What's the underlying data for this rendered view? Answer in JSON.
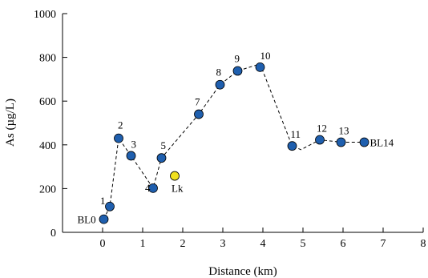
{
  "chart_data": {
    "type": "scatter",
    "title": "",
    "xlabel": "Distance (km)",
    "ylabel": "As (µg/L)",
    "xlim": [
      -1,
      8
    ],
    "ylim": [
      0,
      1000
    ],
    "xticks": [
      0,
      1,
      2,
      3,
      4,
      5,
      6,
      7,
      8
    ],
    "yticks": [
      0,
      200,
      400,
      600,
      800,
      1000
    ],
    "grid": false,
    "legend": "none",
    "series": [
      {
        "color": "#1f5fae",
        "points": [
          {
            "label": "BL0",
            "x": 0.03,
            "y": 60
          },
          {
            "label": "1",
            "x": 0.18,
            "y": 118
          },
          {
            "label": "2",
            "x": 0.4,
            "y": 430
          },
          {
            "label": "3",
            "x": 0.71,
            "y": 350
          },
          {
            "label": "4",
            "x": 1.26,
            "y": 202
          },
          {
            "label": "5",
            "x": 1.47,
            "y": 340
          },
          {
            "label": "7",
            "x": 2.4,
            "y": 540
          },
          {
            "label": "8",
            "x": 2.93,
            "y": 675
          },
          {
            "label": "9",
            "x": 3.37,
            "y": 738
          },
          {
            "label": "10",
            "x": 3.93,
            "y": 755
          },
          {
            "label": "11",
            "x": 4.73,
            "y": 395
          },
          {
            "label": "12",
            "x": 5.42,
            "y": 423
          },
          {
            "label": "13",
            "x": 5.95,
            "y": 412
          },
          {
            "label": "BL14",
            "x": 6.53,
            "y": 412
          }
        ]
      },
      {
        "color": "#f0e020",
        "points": [
          {
            "label": "Lk",
            "x": 1.8,
            "y": 258
          }
        ]
      }
    ],
    "trend_line": {
      "style": "dashed",
      "points": [
        {
          "x": 0.03,
          "y": 60
        },
        {
          "x": 0.18,
          "y": 118
        },
        {
          "x": 0.4,
          "y": 430
        },
        {
          "x": 0.71,
          "y": 350
        },
        {
          "x": 1.26,
          "y": 202
        },
        {
          "x": 1.47,
          "y": 340
        },
        {
          "x": 2.4,
          "y": 540
        },
        {
          "x": 2.93,
          "y": 675
        },
        {
          "x": 3.37,
          "y": 738
        },
        {
          "x": 3.93,
          "y": 770
        },
        {
          "x": 4.73,
          "y": 395
        },
        {
          "x": 4.95,
          "y": 378
        },
        {
          "x": 5.42,
          "y": 423
        },
        {
          "x": 5.95,
          "y": 412
        },
        {
          "x": 6.53,
          "y": 412
        }
      ]
    }
  }
}
